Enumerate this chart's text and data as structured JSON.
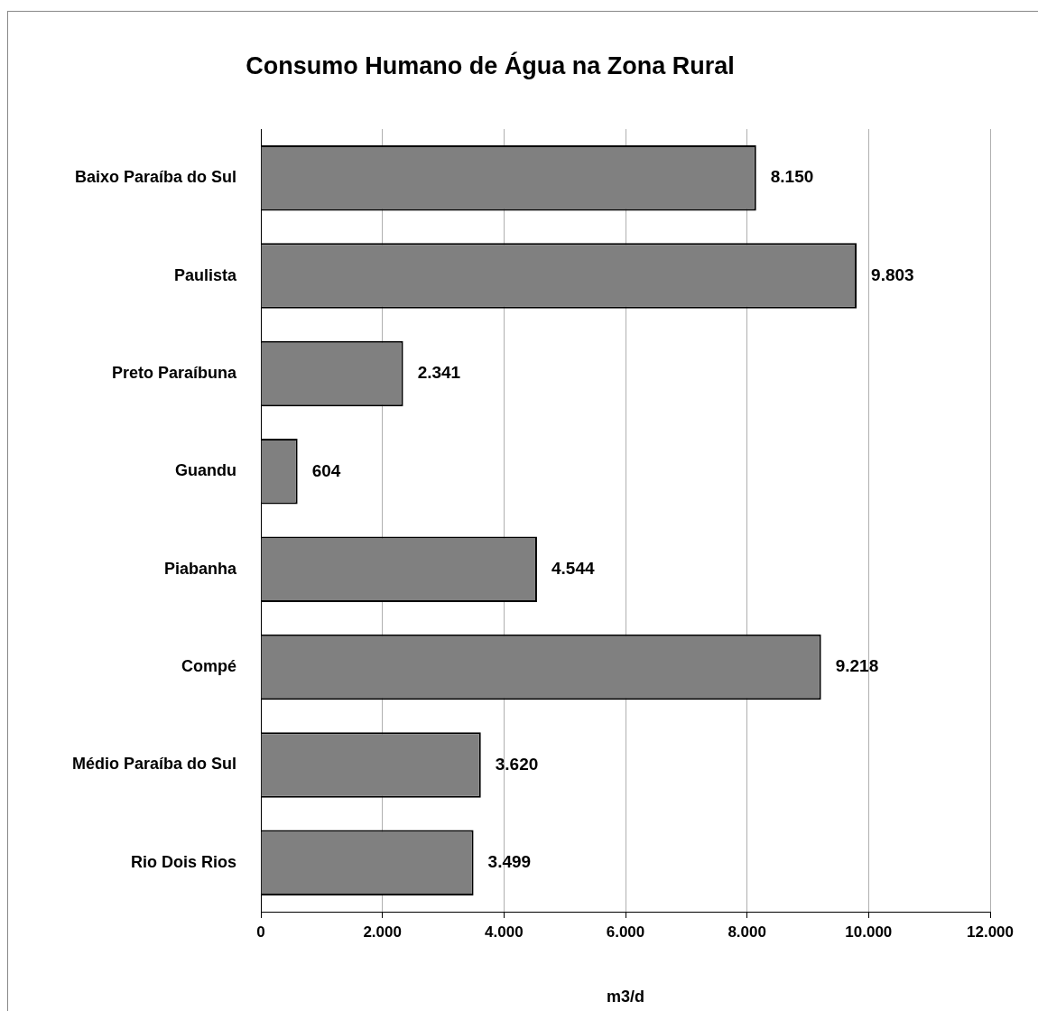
{
  "chart_data": {
    "type": "bar",
    "orientation": "horizontal",
    "title": "Consumo Humano de Água na Zona Rural",
    "xlabel": "m3/d",
    "categories": [
      "Baixo Paraíba do Sul",
      "Paulista",
      "Preto Paraíbuna",
      "Guandu",
      "Piabanha",
      "Compé",
      "Médio Paraíba do Sul",
      "Rio Dois Rios"
    ],
    "values": [
      8150,
      9803,
      2341,
      604,
      4544,
      9218,
      3620,
      3499
    ],
    "value_labels": [
      "8.150",
      "9.803",
      "2.341",
      "604",
      "4.544",
      "9.218",
      "3.620",
      "3.499"
    ],
    "color": "#808080",
    "xlim": [
      0,
      12000
    ],
    "xticks": [
      0,
      {
        "value": 2000,
        "label": "2.000"
      },
      {
        "value": 4000,
        "label": "4.000"
      },
      {
        "value": 6000,
        "label": "6.000"
      },
      {
        "value": 8000,
        "label": "8.000"
      },
      {
        "value": 10000,
        "label": "10.000"
      },
      {
        "value": 12000,
        "label": "12.000"
      }
    ],
    "grid": "x",
    "legend": false
  }
}
